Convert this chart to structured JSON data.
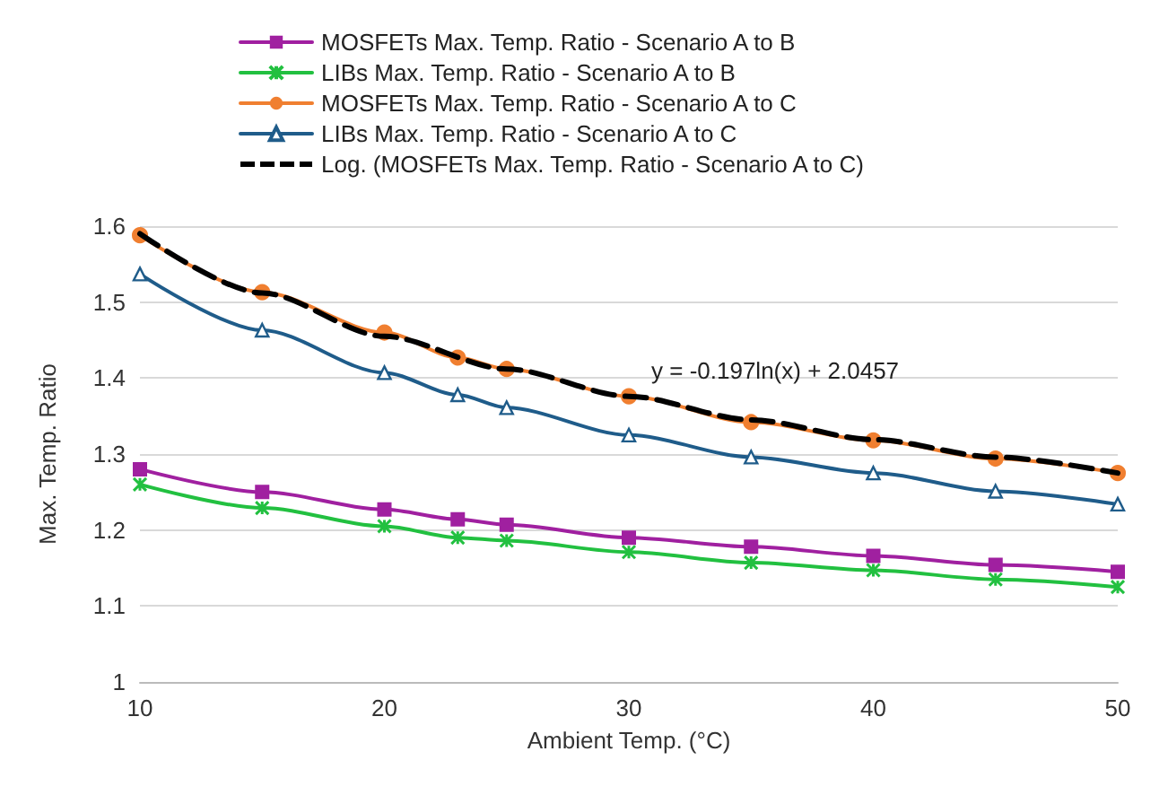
{
  "chart_data": {
    "type": "line",
    "xlabel": "Ambient Temp. (°C)",
    "ylabel": "Max. Temp. Ratio",
    "xlim": [
      10,
      50
    ],
    "xticks": [
      10,
      20,
      30,
      40,
      50
    ],
    "ylim": [
      1,
      1.6
    ],
    "yticks": [
      1,
      1.1,
      1.2,
      1.3,
      1.4,
      1.5,
      1.6
    ],
    "grid": "y",
    "legend": "top",
    "line_style": "solid",
    "x": [
      10,
      15,
      20,
      23,
      25,
      30,
      35,
      40,
      45,
      50
    ],
    "series": [
      {
        "name": "MOSFETs Max. Temp. Ratio - Scenario A to B",
        "color": "#a020a0",
        "marker": "square",
        "values": [
          1.28,
          1.25,
          1.227,
          1.214,
          1.207,
          1.19,
          1.178,
          1.166,
          1.154,
          1.145
        ]
      },
      {
        "name": "LIBs Max. Temp. Ratio - Scenario A to B",
        "color": "#22c040",
        "marker": "cross",
        "values": [
          1.26,
          1.229,
          1.205,
          1.19,
          1.186,
          1.171,
          1.157,
          1.147,
          1.135,
          1.125
        ]
      },
      {
        "name": "MOSFETs Max. Temp. Ratio - Scenario A to C",
        "color": "#f07f30",
        "marker": "circle",
        "values": [
          1.588,
          1.513,
          1.46,
          1.427,
          1.412,
          1.376,
          1.342,
          1.318,
          1.294,
          1.275
        ]
      },
      {
        "name": "LIBs Max. Temp. Ratio - Scenario A to C",
        "color": "#1f5c8a",
        "marker": "triangle",
        "values": [
          1.537,
          1.463,
          1.407,
          1.378,
          1.361,
          1.325,
          1.296,
          1.275,
          1.251,
          1.234
        ]
      },
      {
        "name": "Log. (MOSFETs Max. Temp. Ratio - Scenario A to C)",
        "color": "#000000",
        "marker": "none",
        "line_style": "dashed",
        "x": [
          10,
          15,
          20,
          25,
          30,
          35,
          40,
          45,
          50
        ],
        "values": [
          1.59,
          1.512,
          1.455,
          1.412,
          1.376,
          1.345,
          1.319,
          1.296,
          1.275
        ]
      }
    ],
    "annotations": [
      "y = -0.197ln(x) + 2.0457"
    ]
  }
}
